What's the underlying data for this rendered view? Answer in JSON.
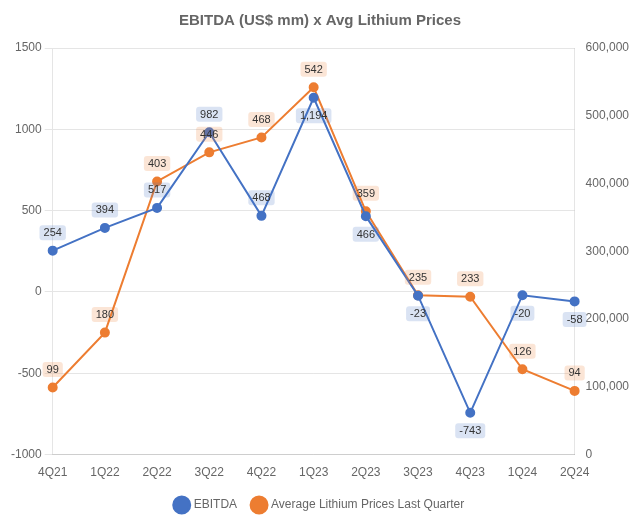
{
  "chart_data": {
    "type": "line",
    "title": "EBITDA (US$ mm) x Avg Lithium Prices",
    "categories": [
      "4Q21",
      "1Q22",
      "2Q22",
      "3Q22",
      "4Q22",
      "1Q23",
      "2Q23",
      "3Q23",
      "4Q23",
      "1Q24",
      "2Q24"
    ],
    "series": [
      {
        "name": "EBITDA",
        "color": "#4472C4",
        "marker": "circle",
        "values": [
          254,
          394,
          517,
          982,
          468,
          1194,
          466,
          -23,
          -743,
          -20,
          -58
        ],
        "value_labels": [
          "254",
          "394",
          "517",
          "982",
          "468",
          "1,194",
          "466",
          "-23",
          "-743",
          "-20",
          "-58"
        ]
      },
      {
        "name": "Average Lithium Prices Last Quarter",
        "color": "#ED7D31",
        "marker": "circle",
        "axis": "y2",
        "values": [
          99000,
          180000,
          403000,
          446000,
          468000,
          542000,
          359000,
          235000,
          233000,
          126000,
          94000
        ],
        "value_labels": [
          "99",
          "180",
          "403",
          "446",
          "468",
          "542",
          "359",
          "235",
          "233",
          "126",
          "94"
        ]
      }
    ],
    "ylim": [
      -1000,
      1500
    ],
    "yticks": [
      -1000,
      -500,
      0,
      500,
      1000,
      1500
    ],
    "y2lim": [
      0,
      600000
    ],
    "y2ticks": [
      0,
      {
        "value": 100000,
        "label": "100,000"
      },
      {
        "value": 200000,
        "label": "200,000"
      },
      {
        "value": 300000,
        "label": "300,000"
      },
      {
        "value": 400000,
        "label": "400,000"
      },
      {
        "value": 500000,
        "label": "500,000"
      },
      {
        "value": 600000,
        "label": "600,000"
      }
    ],
    "grid": true,
    "legend": "bottom",
    "data_labels": true
  }
}
